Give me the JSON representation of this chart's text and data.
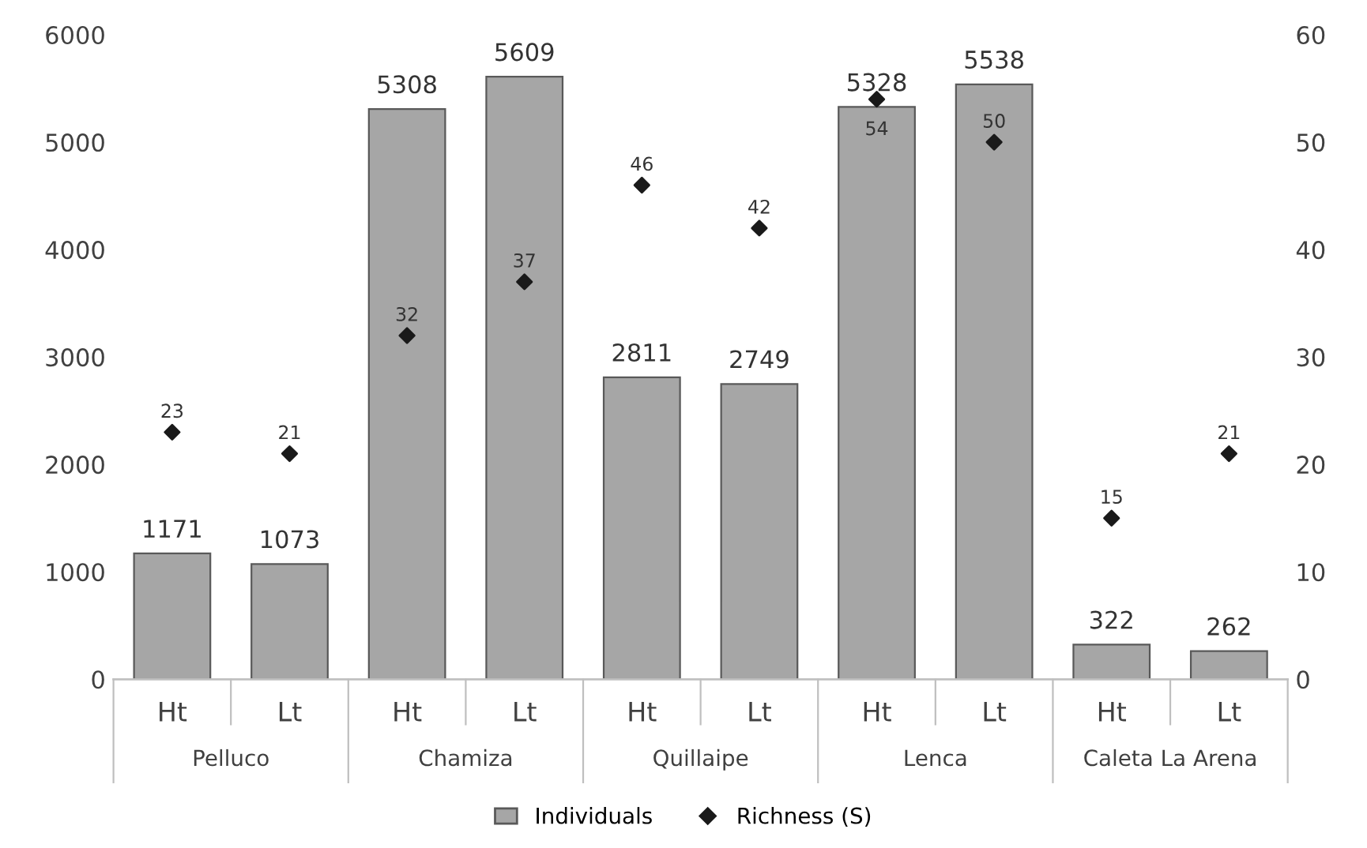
{
  "chart_data": {
    "type": "bar",
    "categories": [
      "Ht",
      "Lt",
      "Ht",
      "Lt",
      "Ht",
      "Lt",
      "Ht",
      "Lt",
      "Ht",
      "Lt"
    ],
    "annotations": [
      "Pelluco",
      "Chamiza",
      "Quillaipe",
      "Lenca",
      "Caleta La Arena"
    ],
    "series": [
      {
        "name": "Individuals",
        "color": "#a6a6a6",
        "values": [
          1171,
          1073,
          5308,
          5609,
          2811,
          2749,
          5328,
          5538,
          322,
          262
        ]
      },
      {
        "name": "Richness (S)",
        "type": "scatter",
        "axis": "y2",
        "color": "#1a1a1a",
        "marker": "diamond",
        "values": [
          23,
          21,
          32,
          37,
          46,
          42,
          54,
          50,
          15,
          21
        ]
      }
    ],
    "ylim": [
      0,
      6000
    ],
    "yticks": [
      0,
      1000,
      2000,
      3000,
      4000,
      5000,
      6000
    ],
    "y2lim": [
      0,
      60
    ],
    "y2ticks": [
      0,
      10,
      20,
      30,
      40,
      50,
      60
    ],
    "data_labels": true,
    "grid": false,
    "legend": "bottom"
  }
}
